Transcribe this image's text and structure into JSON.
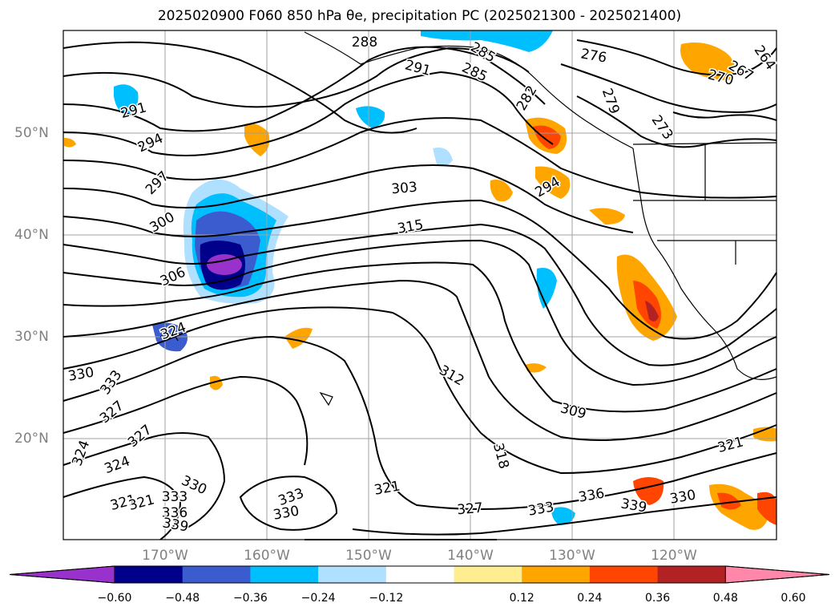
{
  "title": "2025020900 F060 850 hPa θe, precipitation PC (2025021300 - 2025021400)",
  "map": {
    "lat_labels": [
      "50°N",
      "40°N",
      "30°N",
      "20°N"
    ],
    "lon_labels": [
      "170°W",
      "160°W",
      "150°W",
      "140°W",
      "130°W",
      "120°W"
    ],
    "contour_labels": [
      "288",
      "291",
      "285",
      "285",
      "282",
      "276",
      "279",
      "273",
      "267",
      "264",
      "270",
      "291",
      "294",
      "297",
      "300",
      "303",
      "315",
      "306",
      "294",
      "324",
      "330",
      "333",
      "327",
      "327",
      "324",
      "324",
      "321",
      "321",
      "330",
      "333",
      "333",
      "336",
      "339",
      "330",
      "312",
      "309",
      "318",
      "321",
      "327",
      "333",
      "336",
      "339",
      "330",
      "321"
    ],
    "colors": {
      "coastline": "#000000",
      "contour": "#000000",
      "grid": "#a0a0a0"
    }
  },
  "colorbar": {
    "ticks": [
      "−0.60",
      "−0.48",
      "−0.36",
      "−0.24",
      "−0.12",
      "0.12",
      "0.24",
      "0.36",
      "0.48",
      "0.60"
    ],
    "colors": [
      "#9932cc",
      "#00008b",
      "#3a5ccf",
      "#00bfff",
      "#b0e0ff",
      "#ffffff",
      "#ffee90",
      "#ffa500",
      "#ff4500",
      "#b22222",
      "#ff88aa"
    ]
  }
}
